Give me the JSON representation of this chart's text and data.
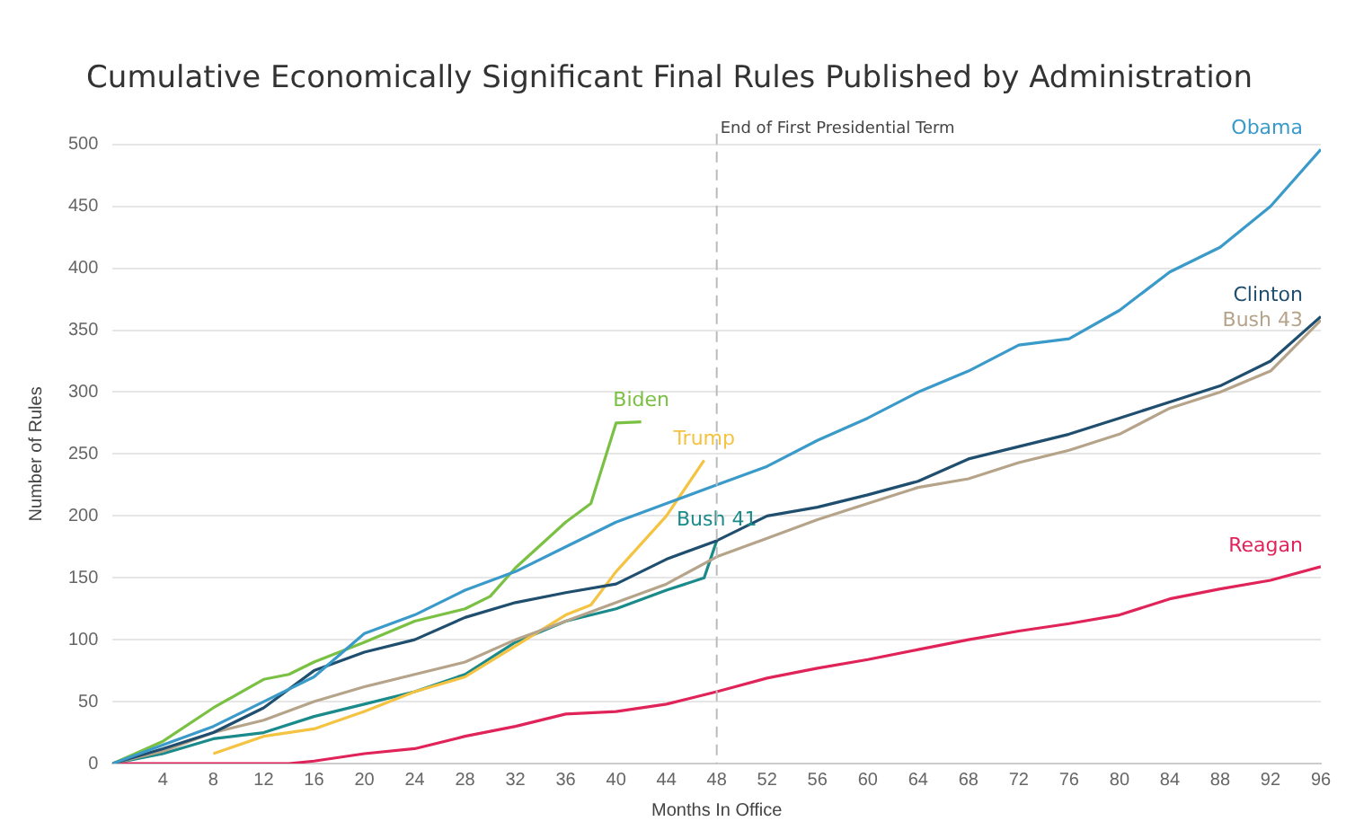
{
  "chart_data": {
    "type": "line",
    "title": "Cumulative Economically Significant Final Rules Published by Administration",
    "xlabel": "Months In Office",
    "ylabel": "Number of Rules",
    "xlim": [
      0,
      96
    ],
    "xticks": [
      4,
      8,
      12,
      16,
      20,
      24,
      28,
      32,
      36,
      40,
      44,
      48,
      52,
      56,
      60,
      64,
      68,
      72,
      76,
      80,
      84,
      88,
      92,
      96
    ],
    "ylim": [
      0,
      500
    ],
    "yticks": [
      0,
      50,
      100,
      150,
      200,
      250,
      300,
      350,
      400,
      450,
      500
    ],
    "grid": "y",
    "legend": false,
    "marker": "none",
    "line_style": "solid",
    "ref_lines": [
      {
        "axis": "x",
        "value": 48,
        "label": "End of First Presidential Term",
        "color": "#bbbbbb",
        "line_style": "dashed"
      }
    ],
    "series": [
      {
        "name": "Obama",
        "color": "#3a9ac9",
        "x": [
          0,
          4,
          8,
          12,
          16,
          20,
          24,
          28,
          32,
          36,
          40,
          44,
          48,
          52,
          56,
          60,
          64,
          68,
          72,
          76,
          80,
          84,
          88,
          92,
          96
        ],
        "values": [
          0,
          15,
          30,
          50,
          70,
          105,
          120,
          140,
          155,
          175,
          195,
          210,
          225,
          240,
          261,
          279,
          300,
          317,
          338,
          343,
          366,
          397,
          417,
          450,
          496
        ]
      },
      {
        "name": "Clinton",
        "color": "#1f4e6e",
        "x": [
          0,
          4,
          8,
          12,
          16,
          20,
          24,
          28,
          32,
          36,
          40,
          44,
          48,
          52,
          56,
          60,
          64,
          68,
          72,
          76,
          80,
          84,
          88,
          92,
          96
        ],
        "values": [
          0,
          12,
          25,
          45,
          75,
          90,
          100,
          118,
          130,
          138,
          145,
          165,
          180,
          200,
          207,
          217,
          228,
          246,
          256,
          266,
          279,
          292,
          305,
          325,
          361
        ]
      },
      {
        "name": "Bush 43",
        "color": "#b5a48a",
        "x": [
          0,
          4,
          8,
          12,
          16,
          20,
          24,
          28,
          32,
          36,
          40,
          44,
          48,
          52,
          56,
          60,
          64,
          68,
          72,
          76,
          80,
          84,
          88,
          92,
          96
        ],
        "values": [
          0,
          10,
          25,
          35,
          50,
          62,
          72,
          82,
          100,
          115,
          130,
          145,
          167,
          182,
          197,
          210,
          223,
          230,
          243,
          253,
          266,
          287,
          300,
          317,
          358
        ]
      },
      {
        "name": "Reagan",
        "color": "#e0245a",
        "x": [
          0,
          4,
          8,
          12,
          14,
          16,
          20,
          24,
          28,
          32,
          36,
          40,
          44,
          48,
          52,
          56,
          60,
          64,
          68,
          72,
          76,
          80,
          84,
          88,
          92,
          96
        ],
        "values": [
          0,
          0,
          0,
          0,
          0,
          2,
          8,
          12,
          22,
          30,
          40,
          42,
          48,
          58,
          69,
          77,
          84,
          92,
          100,
          107,
          113,
          120,
          133,
          141,
          148,
          159
        ]
      },
      {
        "name": "Biden",
        "color": "#7ac143",
        "x": [
          0,
          4,
          8,
          12,
          14,
          16,
          20,
          24,
          28,
          30,
          32,
          36,
          38,
          40,
          42
        ],
        "values": [
          0,
          18,
          45,
          68,
          72,
          82,
          98,
          115,
          125,
          135,
          158,
          195,
          210,
          275,
          276
        ]
      },
      {
        "name": "Trump",
        "color": "#f5c342",
        "x": [
          8,
          12,
          16,
          18,
          20,
          24,
          28,
          32,
          36,
          38,
          40,
          44,
          47
        ],
        "values": [
          8,
          22,
          28,
          35,
          42,
          58,
          70,
          95,
          120,
          128,
          155,
          200,
          245
        ]
      },
      {
        "name": "Bush 41",
        "color": "#1a8a8a",
        "x": [
          0,
          4,
          8,
          12,
          16,
          20,
          24,
          28,
          32,
          36,
          40,
          44,
          47,
          48
        ],
        "values": [
          0,
          8,
          20,
          25,
          38,
          48,
          58,
          72,
          98,
          115,
          125,
          140,
          150,
          180
        ]
      }
    ]
  }
}
